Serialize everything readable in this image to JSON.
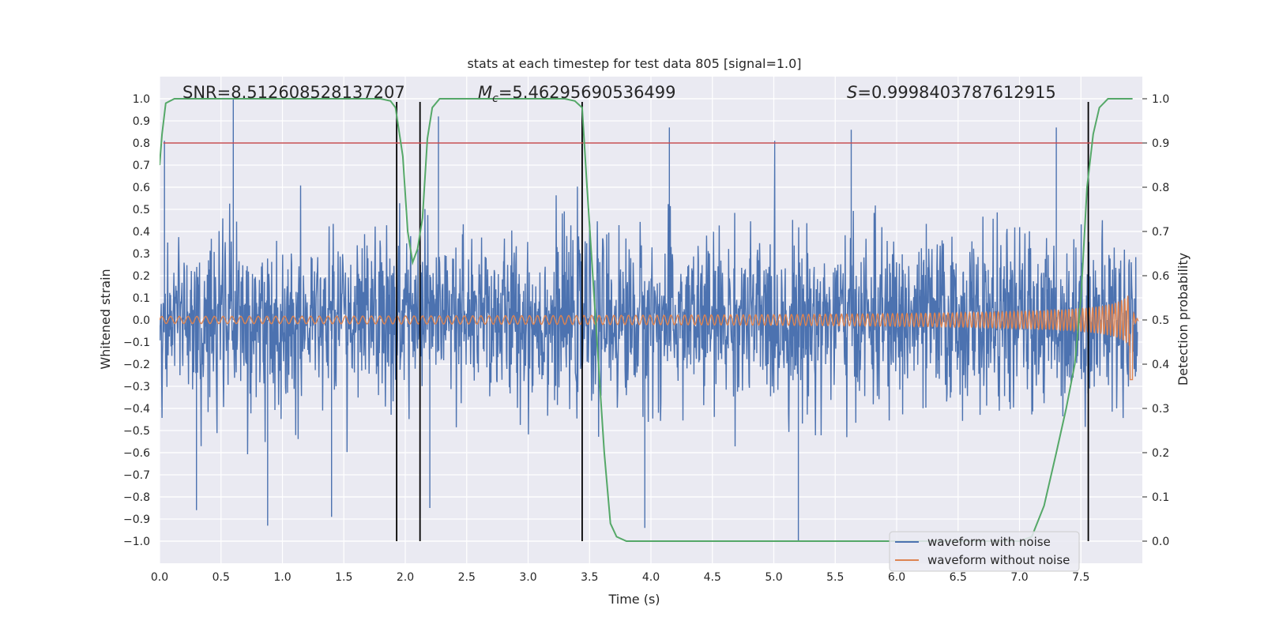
{
  "chart_data": {
    "type": "line",
    "title": "stats at each timestep for test data 805 [signal=1.0]",
    "xlabel": "Time (s)",
    "ylabel": "Whitened strain",
    "y2label": "Detection probability",
    "xlim": [
      0.0,
      8.0
    ],
    "ylim": [
      -1.1,
      1.1
    ],
    "y2lim": [
      -0.05,
      1.05
    ],
    "grid": true,
    "x_ticks": [
      0.0,
      0.5,
      1.0,
      1.5,
      2.0,
      2.5,
      3.0,
      3.5,
      4.0,
      4.5,
      5.0,
      5.5,
      6.0,
      6.5,
      7.0,
      7.5
    ],
    "y_ticks": [
      -1.0,
      -0.9,
      -0.8,
      -0.7,
      -0.6,
      -0.5,
      -0.4,
      -0.3,
      -0.2,
      -0.1,
      0.0,
      0.1,
      0.2,
      0.3,
      0.4,
      0.5,
      0.6,
      0.7,
      0.8,
      0.9,
      1.0
    ],
    "y2_ticks": [
      0.0,
      0.1,
      0.2,
      0.3,
      0.4,
      0.5,
      0.6,
      0.7,
      0.8,
      0.9,
      1.0
    ],
    "annotations": {
      "snr": "SNR=8.512608528137207",
      "mc_symbol": "M",
      "mc_sub": "c",
      "mc_value": "=5.46295690536499",
      "s_symbol": "S",
      "s_value": "=0.9998403787612915"
    },
    "threshold_line": {
      "axis": "y2",
      "value": 0.9,
      "color": "#c44e52"
    },
    "vertical_lines": [
      1.93,
      2.12,
      3.44,
      7.56
    ],
    "series": [
      {
        "name": "waveform with noise",
        "color": "#4c72b0",
        "envelope": {
          "typical_amplitude": 0.45,
          "peak_max": 1.0,
          "peak_min": -1.0
        },
        "peaks": [
          [
            0.04,
            0.81
          ],
          [
            0.6,
            1.0
          ],
          [
            0.3,
            -0.86
          ],
          [
            0.88,
            -0.93
          ],
          [
            1.4,
            -0.89
          ],
          [
            2.27,
            0.92
          ],
          [
            2.2,
            -0.85
          ],
          [
            4.15,
            0.87
          ],
          [
            5.2,
            -1.0
          ],
          [
            5.63,
            0.86
          ],
          [
            7.3,
            0.87
          ],
          [
            3.95,
            -0.94
          ]
        ]
      },
      {
        "name": "waveform without noise",
        "color": "#dd8452",
        "chirp": {
          "base_amplitude": 0.016,
          "peak_time": 7.9,
          "peak_amplitude": 0.2,
          "min_after_peak": -0.27,
          "start_freq": 14,
          "end_freq": 40
        }
      },
      {
        "name": "",
        "color": "#55a868",
        "axis": "y2",
        "x": [
          0.0,
          0.02,
          0.05,
          0.12,
          0.3,
          0.6,
          1.0,
          1.4,
          1.8,
          1.88,
          1.92,
          1.98,
          2.02,
          2.06,
          2.1,
          2.14,
          2.18,
          2.22,
          2.28,
          2.5,
          3.0,
          3.3,
          3.38,
          3.44,
          3.48,
          3.55,
          3.62,
          3.67,
          3.72,
          3.8,
          4.5,
          5.5,
          6.5,
          7.0,
          7.1,
          7.2,
          7.3,
          7.38,
          7.45,
          7.5,
          7.55,
          7.6,
          7.65,
          7.72,
          7.8,
          7.92
        ],
        "y": [
          0.85,
          0.92,
          0.99,
          1.0,
          1.0,
          1.0,
          1.0,
          1.0,
          1.0,
          0.995,
          0.98,
          0.87,
          0.7,
          0.63,
          0.66,
          0.73,
          0.91,
          0.98,
          1.0,
          1.0,
          1.0,
          1.0,
          0.995,
          0.98,
          0.8,
          0.5,
          0.2,
          0.04,
          0.01,
          0.0,
          0.0,
          0.0,
          0.0,
          0.0,
          0.01,
          0.08,
          0.2,
          0.3,
          0.4,
          0.55,
          0.8,
          0.92,
          0.98,
          1.0,
          1.0,
          1.0
        ]
      }
    ],
    "legend": {
      "position": "lower-right",
      "items": [
        "waveform with noise",
        "waveform without noise"
      ]
    }
  }
}
